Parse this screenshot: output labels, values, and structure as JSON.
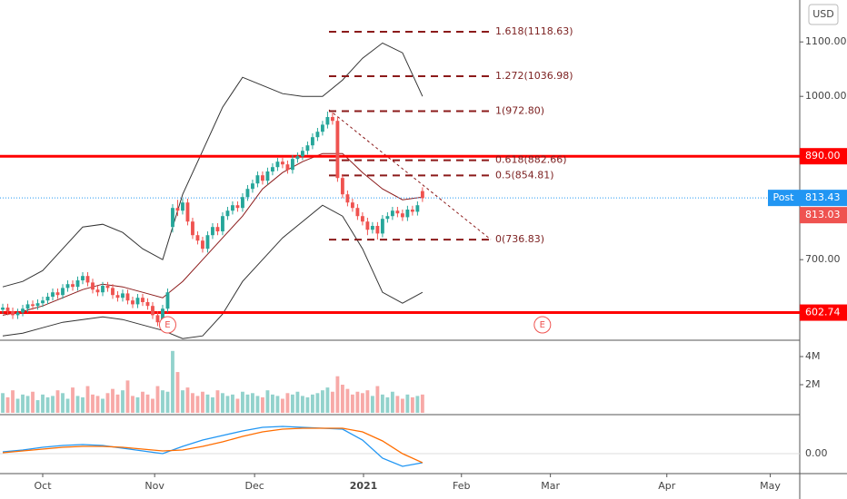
{
  "chart_data": {
    "type": "candlestick",
    "currency": "USD",
    "ylim": [
      552,
      1177
    ],
    "yticks": [
      {
        "value": 1100,
        "label": "1100.00"
      },
      {
        "value": 1000,
        "label": "1000.00"
      },
      {
        "value": 700,
        "label": "700.00"
      }
    ],
    "xlim": [
      -0.55,
      159.5
    ],
    "xticks": [
      {
        "value": 8,
        "label": "Oct"
      },
      {
        "value": 30.4,
        "label": "Nov"
      },
      {
        "value": 50.4,
        "label": "Dec"
      },
      {
        "value": 72.2,
        "label": "2021"
      },
      {
        "value": 91.8,
        "label": "Feb"
      },
      {
        "value": 109.6,
        "label": "Mar"
      },
      {
        "value": 132.9,
        "label": "Apr"
      },
      {
        "value": 153.6,
        "label": "May"
      }
    ],
    "x": [
      0,
      1,
      2,
      3,
      4,
      5,
      6,
      7,
      8,
      9,
      10,
      11,
      12,
      13,
      14,
      15,
      16,
      17,
      18,
      19,
      20,
      21,
      22,
      23,
      24,
      25,
      26,
      27,
      28,
      29,
      30,
      31,
      32,
      33,
      34,
      35,
      36,
      37,
      38,
      39,
      40,
      41,
      42,
      43,
      44,
      45,
      46,
      47,
      48,
      49,
      50,
      51,
      52,
      53,
      54,
      55,
      56,
      57,
      58,
      59,
      60,
      61,
      62,
      63,
      64,
      65,
      66,
      67,
      68,
      69,
      70,
      71,
      72,
      73,
      74,
      75,
      76,
      77,
      78,
      79,
      80,
      81,
      82,
      83,
      84
    ],
    "candles": [
      [
        608,
        619,
        601,
        612
      ],
      [
        612,
        619,
        598,
        605
      ],
      [
        605,
        612,
        591,
        598
      ],
      [
        598,
        610,
        591,
        603
      ],
      [
        603,
        617,
        596,
        610
      ],
      [
        610,
        625,
        603,
        618
      ],
      [
        618,
        625,
        608,
        615
      ],
      [
        615,
        627,
        608,
        620
      ],
      [
        620,
        632,
        613,
        625
      ],
      [
        625,
        639,
        618,
        632
      ],
      [
        632,
        647,
        625,
        640
      ],
      [
        640,
        647,
        628,
        635
      ],
      [
        635,
        655,
        628,
        648
      ],
      [
        648,
        662,
        641,
        655
      ],
      [
        655,
        662,
        643,
        650
      ],
      [
        650,
        669,
        643,
        662
      ],
      [
        662,
        677,
        655,
        670
      ],
      [
        670,
        677,
        651,
        658
      ],
      [
        658,
        665,
        638,
        645
      ],
      [
        645,
        652,
        633,
        640
      ],
      [
        640,
        659,
        633,
        652
      ],
      [
        652,
        659,
        641,
        648
      ],
      [
        648,
        655,
        628,
        635
      ],
      [
        635,
        642,
        623,
        630
      ],
      [
        630,
        645,
        623,
        638
      ],
      [
        638,
        645,
        618,
        625
      ],
      [
        625,
        632,
        611,
        618
      ],
      [
        618,
        637,
        611,
        630
      ],
      [
        630,
        637,
        615,
        622
      ],
      [
        622,
        629,
        608,
        615
      ],
      [
        615,
        622,
        591,
        598
      ],
      [
        598,
        605,
        578,
        585
      ],
      [
        585,
        617,
        578,
        610
      ],
      [
        610,
        647,
        603,
        640
      ],
      [
        760,
        802,
        750,
        795
      ],
      [
        795,
        810,
        780,
        790
      ],
      [
        790,
        812,
        783,
        805
      ],
      [
        805,
        812,
        763,
        770
      ],
      [
        770,
        777,
        738,
        745
      ],
      [
        745,
        752,
        728,
        735
      ],
      [
        735,
        742,
        713,
        720
      ],
      [
        720,
        752,
        713,
        745
      ],
      [
        745,
        767,
        738,
        760
      ],
      [
        760,
        767,
        745,
        752
      ],
      [
        752,
        787,
        745,
        780
      ],
      [
        780,
        797,
        773,
        790
      ],
      [
        790,
        807,
        783,
        800
      ],
      [
        800,
        807,
        788,
        795
      ],
      [
        795,
        822,
        788,
        815
      ],
      [
        815,
        837,
        808,
        830
      ],
      [
        830,
        847,
        823,
        840
      ],
      [
        840,
        862,
        833,
        855
      ],
      [
        855,
        862,
        838,
        845
      ],
      [
        845,
        869,
        838,
        862
      ],
      [
        862,
        877,
        855,
        870
      ],
      [
        870,
        887,
        863,
        880
      ],
      [
        880,
        887,
        868,
        875
      ],
      [
        875,
        882,
        858,
        865
      ],
      [
        865,
        892,
        858,
        885
      ],
      [
        885,
        897,
        878,
        890
      ],
      [
        890,
        907,
        883,
        900
      ],
      [
        900,
        917,
        893,
        910
      ],
      [
        910,
        932,
        903,
        925
      ],
      [
        925,
        942,
        918,
        935
      ],
      [
        935,
        955,
        928,
        948
      ],
      [
        948,
        972,
        941,
        962
      ],
      [
        962,
        970,
        948,
        955
      ],
      [
        955,
        962,
        843,
        850
      ],
      [
        850,
        857,
        813,
        820
      ],
      [
        820,
        827,
        798,
        805
      ],
      [
        805,
        812,
        788,
        795
      ],
      [
        795,
        802,
        773,
        780
      ],
      [
        780,
        787,
        763,
        770
      ],
      [
        770,
        777,
        745,
        755
      ],
      [
        755,
        769,
        748,
        762
      ],
      [
        762,
        769,
        737,
        748
      ],
      [
        748,
        782,
        741,
        775
      ],
      [
        775,
        787,
        768,
        780
      ],
      [
        780,
        797,
        773,
        790
      ],
      [
        790,
        797,
        778,
        785
      ],
      [
        785,
        792,
        771,
        778
      ],
      [
        778,
        799,
        771,
        792
      ],
      [
        792,
        799,
        781,
        788
      ],
      [
        788,
        807,
        781,
        800
      ],
      [
        826,
        833,
        806,
        813.03
      ]
    ],
    "up_color": "#26a69a",
    "down_color": "#ef5350",
    "volume": [
      1400000,
      1100000,
      1600000,
      1000000,
      1300000,
      1200000,
      1500000,
      900000,
      1300000,
      1100000,
      1200000,
      1600000,
      1400000,
      1000000,
      1800000,
      1200000,
      1100000,
      1900000,
      1300000,
      1200000,
      1000000,
      1400000,
      1700000,
      1300000,
      1600000,
      2300000,
      1200000,
      1100000,
      1500000,
      1300000,
      1000000,
      1900000,
      1600000,
      1500000,
      4400000,
      2900000,
      1600000,
      1800000,
      1400000,
      1200000,
      1500000,
      1300000,
      1100000,
      1600000,
      1400000,
      1200000,
      1300000,
      1000000,
      1500000,
      1300000,
      1400000,
      1200000,
      1100000,
      1600000,
      1300000,
      1200000,
      1000000,
      1400000,
      1300000,
      1500000,
      1200000,
      1100000,
      1300000,
      1400000,
      1600000,
      1800000,
      1500000,
      2600000,
      2000000,
      1700000,
      1300000,
      1500000,
      1400000,
      1600000,
      1200000,
      1900000,
      1300000,
      1100000,
      1500000,
      1200000,
      1000000,
      1300000,
      1100000,
      1200000,
      1300000
    ],
    "volume_ylim": [
      0,
      4840000
    ],
    "volume_ticks": [
      {
        "value": 4000000,
        "label": "4M"
      },
      {
        "value": 2000000,
        "label": "2M"
      }
    ],
    "indicators": [
      {
        "color": "#333333",
        "x": [
          0,
          4,
          8,
          12,
          16,
          20,
          24,
          28,
          32,
          36,
          40,
          44,
          48,
          52,
          56,
          60,
          64,
          68,
          72,
          76,
          80,
          84
        ],
        "values": [
          650,
          660,
          680,
          720,
          760,
          765,
          750,
          720,
          700,
          820,
          900,
          980,
          1035,
          1020,
          1005,
          1000,
          1000,
          1030,
          1070,
          1098,
          1080,
          1000
        ]
      },
      {
        "color": "#333333",
        "x": [
          0,
          4,
          8,
          12,
          16,
          20,
          24,
          28,
          32,
          36,
          40,
          44,
          48,
          52,
          56,
          60,
          64,
          68,
          72,
          76,
          80,
          84
        ],
        "values": [
          560,
          565,
          575,
          585,
          590,
          595,
          590,
          580,
          570,
          555,
          560,
          600,
          660,
          700,
          740,
          770,
          800,
          780,
          720,
          640,
          620,
          640
        ]
      },
      {
        "color": "#8b1a1a",
        "x": [
          0,
          4,
          8,
          12,
          16,
          20,
          24,
          28,
          32,
          36,
          40,
          44,
          48,
          52,
          56,
          60,
          64,
          68,
          72,
          76,
          80,
          84
        ],
        "values": [
          598,
          605,
          615,
          630,
          645,
          655,
          650,
          640,
          630,
          660,
          700,
          740,
          780,
          830,
          860,
          880,
          895,
          895,
          860,
          830,
          810,
          815
        ]
      }
    ],
    "fibonacci": [
      {
        "value": 1118.63,
        "label": "1.618(1118.63)"
      },
      {
        "value": 1036.98,
        "label": "1.272(1036.98)"
      },
      {
        "value": 972.8,
        "label": "1(972.80)"
      },
      {
        "value": 882.66,
        "label": "0.618(882.66)"
      },
      {
        "value": 854.81,
        "label": "0.5(854.81)"
      },
      {
        "value": 736.83,
        "label": "0(736.83)"
      }
    ],
    "fib_color": "#8b1a1a",
    "levels": [
      {
        "value": 890,
        "label": "890.00",
        "color": "#ff0000"
      },
      {
        "value": 602.74,
        "label": "602.74",
        "color": "#ff0000"
      }
    ],
    "post": {
      "tag": "Post",
      "value": 813.43,
      "label": "813.43",
      "color": "#2196f3"
    },
    "last": {
      "value": 813.03,
      "label": "813.03",
      "color": "#ef5350"
    },
    "earnings": [
      {
        "x": 33,
        "label": "E"
      },
      {
        "x": 108,
        "label": "E"
      }
    ],
    "macd": {
      "ylim": [
        -22,
        40
      ],
      "yticks": [
        {
          "value": 0,
          "label": "0.00"
        }
      ],
      "x": [
        0,
        4,
        8,
        12,
        16,
        20,
        24,
        28,
        32,
        36,
        40,
        44,
        48,
        52,
        56,
        60,
        64,
        68,
        72,
        76,
        80,
        84
      ],
      "series": [
        {
          "color": "#2196f3",
          "values": [
            2,
            4,
            7,
            9,
            10,
            9,
            6,
            3,
            0,
            8,
            15,
            20,
            25,
            29,
            30,
            29,
            28,
            27,
            15,
            -5,
            -14,
            -10
          ]
        },
        {
          "color": "#ff6d00",
          "values": [
            1,
            3,
            5,
            7,
            8,
            8,
            7,
            5,
            3,
            4,
            8,
            13,
            19,
            24,
            27,
            28,
            28,
            28,
            24,
            14,
            0,
            -10
          ]
        }
      ]
    }
  }
}
